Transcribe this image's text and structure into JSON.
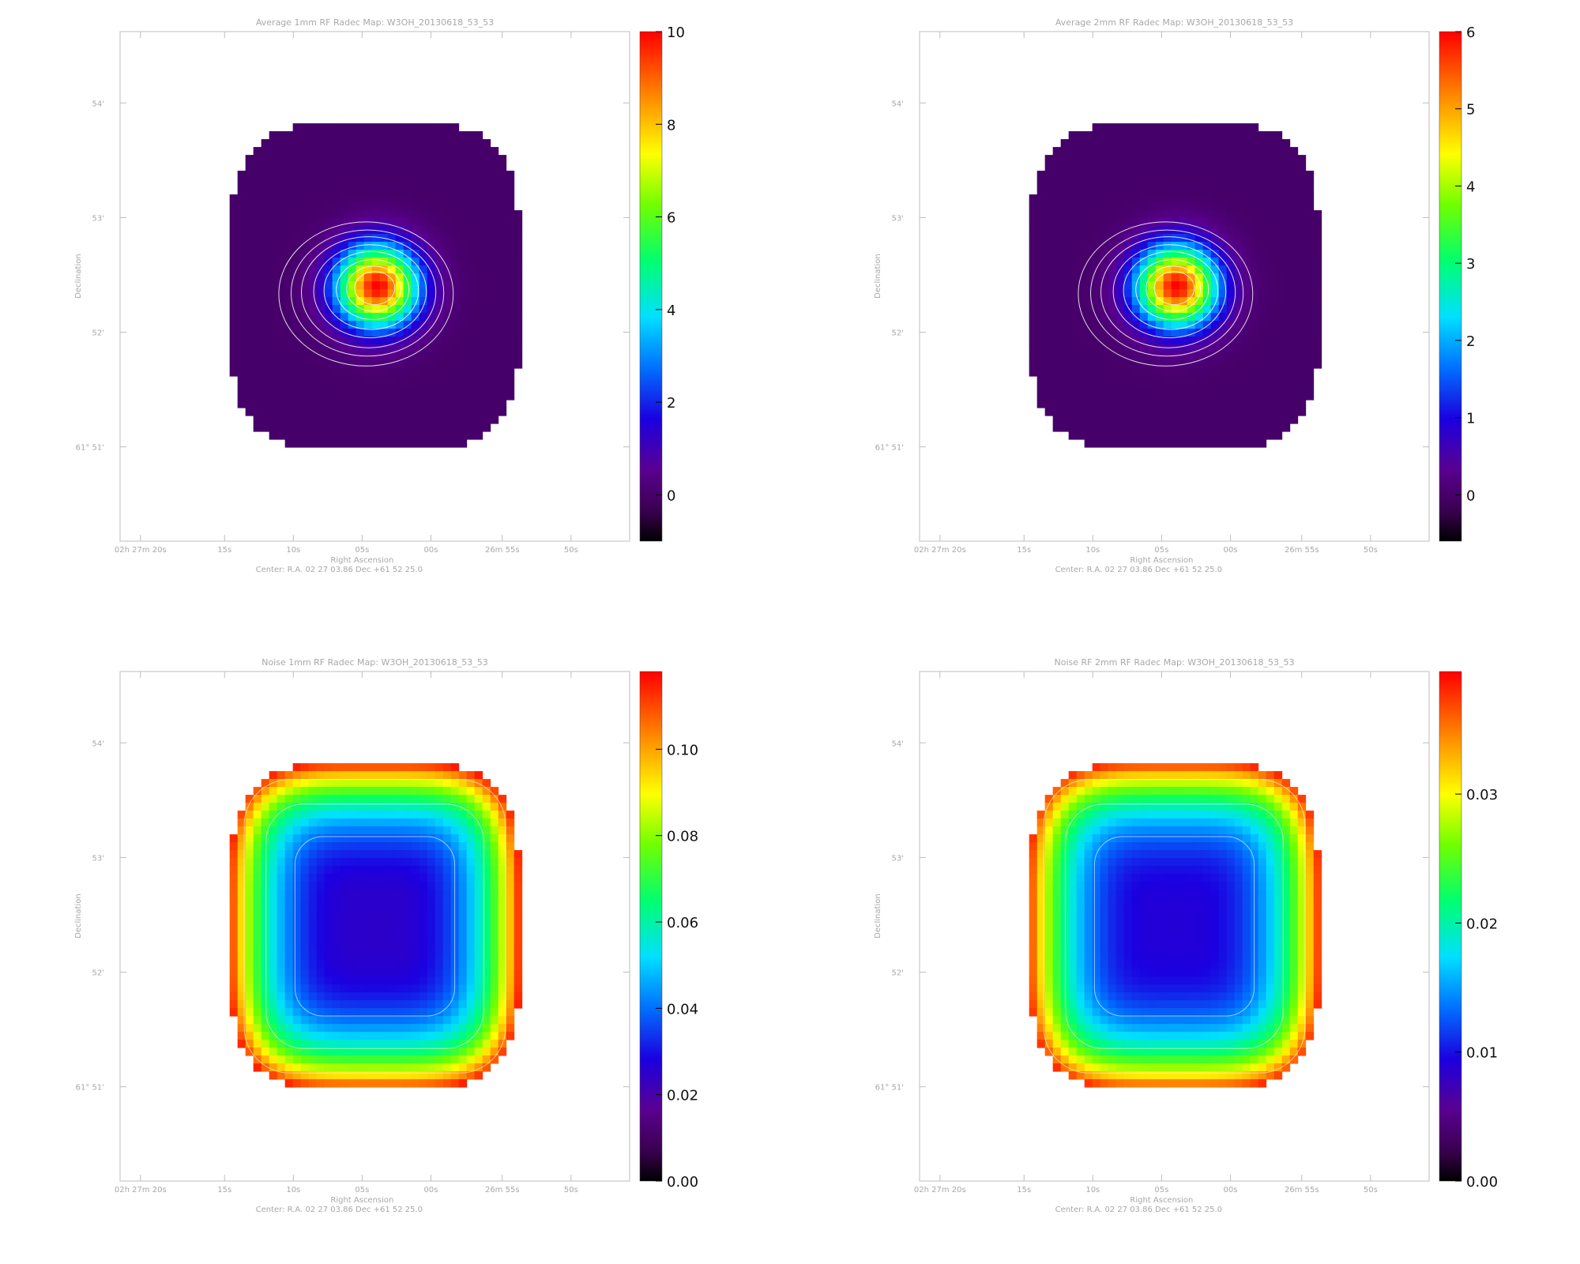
{
  "chart_data": [
    {
      "type": "heatmap",
      "title": "Average 1mm RF Radec Map: W3OH_20130618_53_53",
      "xlabel": "Right Ascension",
      "ylabel": "Declination",
      "center_text": "Center:  R.A. 02 27 03.86     Dec  +61 52 25.0",
      "x_ticks": [
        "02h 27m 20s",
        "15s",
        "10s",
        "05s",
        "00s",
        "26m 55s",
        "50s"
      ],
      "y_ticks": [
        "54'",
        "53'",
        "52'",
        "61° 51'"
      ],
      "colorbar": {
        "min": -1,
        "max": 10,
        "ticks": [
          10,
          8,
          6,
          4,
          2,
          0
        ]
      },
      "field": {
        "kind": "source",
        "background": 0,
        "peak": 10,
        "peak_ra_offset_s": -1.0,
        "peak_dec_arcmin": 52.38,
        "sigma_arcmin": 0.2
      }
    },
    {
      "type": "heatmap",
      "title": "Average 2mm RF Radec Map: W3OH_20130618_53_53",
      "xlabel": "Right Ascension",
      "ylabel": "Declination",
      "center_text": "Center:  R.A. 02 27 03.86     Dec  +61 52 25.0",
      "x_ticks": [
        "02h 27m 20s",
        "15s",
        "10s",
        "05s",
        "00s",
        "26m 55s",
        "50s"
      ],
      "y_ticks": [
        "54'",
        "53'",
        "52'",
        "61° 51'"
      ],
      "colorbar": {
        "min": -0.6,
        "max": 6,
        "ticks": [
          6,
          5,
          4,
          3,
          2,
          1,
          0
        ]
      },
      "field": {
        "kind": "source",
        "background": 0,
        "peak": 6,
        "peak_ra_offset_s": -1.0,
        "peak_dec_arcmin": 52.36,
        "sigma_arcmin": 0.27
      }
    },
    {
      "type": "heatmap",
      "title": "Noise 1mm RF Radec Map: W3OH_20130618_53_53",
      "xlabel": "Right Ascension",
      "ylabel": "Declination",
      "center_text": "Center:  R.A. 02 27 03.86     Dec  +61 52 25.0",
      "x_ticks": [
        "02h 27m 20s",
        "15s",
        "10s",
        "05s",
        "00s",
        "26m 55s",
        "50s"
      ],
      "y_ticks": [
        "54'",
        "53'",
        "52'",
        "61° 51'"
      ],
      "colorbar": {
        "min": 0,
        "max": 0.118,
        "ticks": [
          "0.10",
          "0.08",
          "0.06",
          "0.04",
          "0.02",
          "0.00"
        ]
      },
      "field": {
        "kind": "noise",
        "center_value": 0.025,
        "edge_value": 0.115
      }
    },
    {
      "type": "heatmap",
      "title": "Noise RF 2mm RF Radec Map: W3OH_20130618_53_53",
      "xlabel": "Right Ascension",
      "ylabel": "Declination",
      "center_text": "Center:  R.A. 02 27 03.86     Dec  +61 52 25.0",
      "x_ticks": [
        "02h 27m 20s",
        "15s",
        "10s",
        "05s",
        "00s",
        "26m 55s",
        "50s"
      ],
      "y_ticks": [
        "54'",
        "53'",
        "52'",
        "61° 51'"
      ],
      "colorbar": {
        "min": 0,
        "max": 0.0395,
        "ticks": [
          "0.03",
          "0.02",
          "0.01",
          "0.00"
        ]
      },
      "field": {
        "kind": "noise",
        "center_value": 0.009,
        "edge_value": 0.038
      }
    }
  ]
}
